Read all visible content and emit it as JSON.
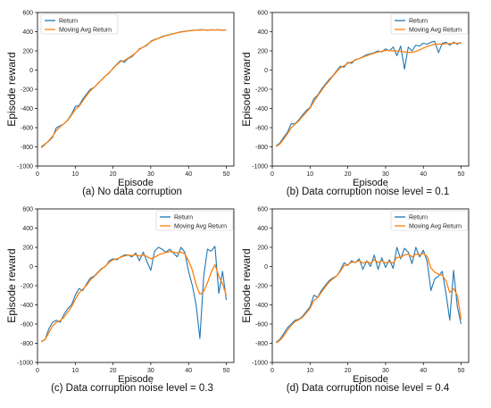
{
  "figure": {
    "panels": [
      {
        "caption": "(a) No data corruption"
      },
      {
        "caption": "(b) Data corruption noise level = 0.1"
      },
      {
        "caption": "(c) Data corruption noise level = 0.3"
      },
      {
        "caption": "(d) Data corruption noise level = 0.4"
      }
    ]
  },
  "colors": {
    "return": "#1f77b4",
    "moving_avg": "#ff7f0e"
  },
  "chart_data": [
    {
      "type": "line",
      "title": "",
      "xlabel": "Episode",
      "ylabel": "Episode reward",
      "xlim": [
        0,
        52
      ],
      "ylim": [
        -1000,
        600
      ],
      "xticks": [
        0,
        10,
        20,
        30,
        40,
        50
      ],
      "yticks": [
        -1000,
        -800,
        -600,
        -400,
        -200,
        0,
        200,
        400,
        600
      ],
      "grid": false,
      "legend": "top-left",
      "x": [
        1,
        2,
        3,
        4,
        5,
        6,
        7,
        8,
        9,
        10,
        11,
        12,
        13,
        14,
        15,
        16,
        17,
        18,
        19,
        20,
        21,
        22,
        23,
        24,
        25,
        26,
        27,
        28,
        29,
        30,
        31,
        32,
        33,
        34,
        35,
        36,
        37,
        38,
        39,
        40,
        41,
        42,
        43,
        44,
        45,
        46,
        47,
        48,
        49,
        50
      ],
      "series": [
        {
          "name": "Return",
          "values": [
            -800,
            -770,
            -740,
            -700,
            -600,
            -580,
            -560,
            -520,
            -460,
            -380,
            -370,
            -300,
            -250,
            -200,
            -180,
            -140,
            -100,
            -60,
            -30,
            20,
            60,
            100,
            80,
            120,
            140,
            180,
            220,
            240,
            260,
            300,
            320,
            330,
            350,
            360,
            370,
            380,
            390,
            400,
            405,
            410,
            415,
            415,
            420,
            420,
            415,
            420,
            418,
            420,
            415,
            420
          ]
        },
        {
          "name": "Moving Avg Return",
          "values": [
            -810,
            -775,
            -735,
            -690,
            -630,
            -590,
            -560,
            -525,
            -470,
            -410,
            -380,
            -320,
            -265,
            -215,
            -180,
            -140,
            -100,
            -60,
            -25,
            15,
            55,
            90,
            100,
            125,
            150,
            180,
            215,
            240,
            265,
            295,
            315,
            330,
            345,
            358,
            368,
            378,
            388,
            396,
            402,
            408,
            412,
            415,
            417,
            418,
            418,
            418,
            418,
            419,
            418,
            419
          ]
        }
      ]
    },
    {
      "type": "line",
      "title": "",
      "xlabel": "Episode",
      "ylabel": "Episode reward",
      "xlim": [
        0,
        52
      ],
      "ylim": [
        -1000,
        600
      ],
      "xticks": [
        0,
        10,
        20,
        30,
        40,
        50
      ],
      "yticks": [
        -1000,
        -800,
        -600,
        -400,
        -200,
        0,
        200,
        400,
        600
      ],
      "grid": false,
      "legend": "top-right",
      "x": [
        1,
        2,
        3,
        4,
        5,
        6,
        7,
        8,
        9,
        10,
        11,
        12,
        13,
        14,
        15,
        16,
        17,
        18,
        19,
        20,
        21,
        22,
        23,
        24,
        25,
        26,
        27,
        28,
        29,
        30,
        31,
        32,
        33,
        34,
        35,
        36,
        37,
        38,
        39,
        40,
        41,
        42,
        43,
        44,
        45,
        46,
        47,
        48,
        49,
        50
      ],
      "series": [
        {
          "name": "Return",
          "values": [
            -790,
            -760,
            -700,
            -650,
            -560,
            -560,
            -520,
            -470,
            -420,
            -390,
            -300,
            -260,
            -200,
            -150,
            -100,
            -60,
            -10,
            40,
            30,
            80,
            70,
            110,
            120,
            140,
            160,
            170,
            180,
            200,
            190,
            220,
            200,
            240,
            150,
            250,
            10,
            240,
            200,
            260,
            250,
            280,
            270,
            290,
            300,
            180,
            280,
            290,
            260,
            290,
            270,
            290
          ]
        },
        {
          "name": "Moving Avg Return",
          "values": [
            -795,
            -770,
            -720,
            -665,
            -600,
            -565,
            -530,
            -485,
            -440,
            -395,
            -330,
            -270,
            -215,
            -160,
            -115,
            -65,
            -20,
            25,
            45,
            70,
            85,
            105,
            120,
            135,
            150,
            165,
            175,
            190,
            195,
            205,
            205,
            200,
            200,
            195,
            190,
            185,
            185,
            195,
            210,
            230,
            245,
            260,
            270,
            270,
            270,
            275,
            275,
            280,
            280,
            280
          ]
        }
      ]
    },
    {
      "type": "line",
      "title": "",
      "xlabel": "Episode",
      "ylabel": "Episode reward",
      "xlim": [
        0,
        52
      ],
      "ylim": [
        -1000,
        600
      ],
      "xticks": [
        0,
        10,
        20,
        30,
        40,
        50
      ],
      "yticks": [
        -1000,
        -800,
        -600,
        -400,
        -200,
        0,
        200,
        400,
        600
      ],
      "grid": false,
      "legend": "top-right",
      "x": [
        1,
        2,
        3,
        4,
        5,
        6,
        7,
        8,
        9,
        10,
        11,
        12,
        13,
        14,
        15,
        16,
        17,
        18,
        19,
        20,
        21,
        22,
        23,
        24,
        25,
        26,
        27,
        28,
        29,
        30,
        31,
        32,
        33,
        34,
        35,
        36,
        37,
        38,
        39,
        40,
        41,
        42,
        43,
        44,
        45,
        46,
        47,
        48,
        49,
        50
      ],
      "series": [
        {
          "name": "Return",
          "values": [
            -780,
            -760,
            -650,
            -580,
            -560,
            -580,
            -500,
            -440,
            -400,
            -300,
            -230,
            -250,
            -180,
            -120,
            -100,
            -60,
            -20,
            0,
            60,
            80,
            70,
            100,
            120,
            120,
            100,
            140,
            60,
            150,
            50,
            -40,
            160,
            200,
            180,
            150,
            180,
            140,
            100,
            200,
            150,
            -50,
            -200,
            -400,
            -750,
            -100,
            180,
            160,
            210,
            -280,
            -50,
            -350
          ]
        },
        {
          "name": "Moving Avg Return",
          "values": [
            -785,
            -760,
            -690,
            -620,
            -580,
            -565,
            -530,
            -475,
            -420,
            -345,
            -275,
            -235,
            -195,
            -140,
            -105,
            -65,
            -25,
            5,
            45,
            70,
            80,
            95,
            110,
            118,
            115,
            125,
            110,
            120,
            105,
            80,
            95,
            120,
            135,
            145,
            155,
            150,
            140,
            150,
            130,
            60,
            -40,
            -190,
            -290,
            -260,
            -170,
            -60,
            20,
            -100,
            -180,
            -300
          ]
        }
      ]
    },
    {
      "type": "line",
      "title": "",
      "xlabel": "Episode",
      "ylabel": "Episode reward",
      "xlim": [
        0,
        52
      ],
      "ylim": [
        -1000,
        600
      ],
      "xticks": [
        0,
        10,
        20,
        30,
        40,
        50
      ],
      "yticks": [
        -1000,
        -800,
        -600,
        -400,
        -200,
        0,
        200,
        400,
        600
      ],
      "grid": false,
      "legend": "top-right",
      "x": [
        1,
        2,
        3,
        4,
        5,
        6,
        7,
        8,
        9,
        10,
        11,
        12,
        13,
        14,
        15,
        16,
        17,
        18,
        19,
        20,
        21,
        22,
        23,
        24,
        25,
        26,
        27,
        28,
        29,
        30,
        31,
        32,
        33,
        34,
        35,
        36,
        37,
        38,
        39,
        40,
        41,
        42,
        43,
        44,
        45,
        46,
        47,
        48,
        49,
        50
      ],
      "series": [
        {
          "name": "Return",
          "values": [
            -790,
            -760,
            -700,
            -640,
            -600,
            -560,
            -550,
            -520,
            -470,
            -420,
            -300,
            -320,
            -250,
            -200,
            -150,
            -120,
            -100,
            -40,
            40,
            10,
            60,
            40,
            80,
            -30,
            60,
            0,
            120,
            -30,
            90,
            -10,
            70,
            -20,
            200,
            80,
            190,
            150,
            30,
            200,
            100,
            170,
            50,
            -250,
            -130,
            -100,
            -50,
            -280,
            -560,
            -40,
            -420,
            -600
          ]
        },
        {
          "name": "Moving Avg Return",
          "values": [
            -795,
            -770,
            -725,
            -665,
            -615,
            -575,
            -555,
            -530,
            -485,
            -435,
            -355,
            -325,
            -270,
            -215,
            -165,
            -130,
            -100,
            -50,
            10,
            20,
            45,
            45,
            60,
            35,
            50,
            35,
            70,
            40,
            60,
            35,
            50,
            35,
            95,
            95,
            120,
            130,
            100,
            130,
            120,
            135,
            105,
            -15,
            -60,
            -80,
            -90,
            -150,
            -270,
            -230,
            -300,
            -550
          ]
        }
      ]
    }
  ]
}
